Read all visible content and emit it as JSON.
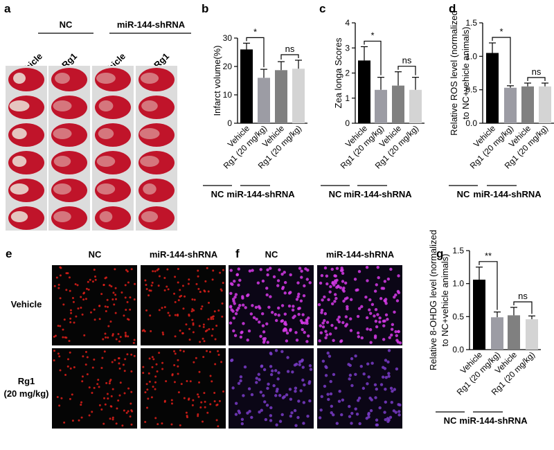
{
  "figure": {
    "panel_labels": [
      "a",
      "e",
      "f"
    ],
    "a": {
      "groups": [
        "NC",
        "miR-144-shRNA"
      ],
      "columns": [
        "Vehicle",
        "Rg1",
        "Vehicle",
        "Rg1"
      ]
    },
    "e": {
      "columns": [
        "NC",
        "miR-144-shRNA"
      ],
      "rows": [
        [
          "Vehicle"
        ],
        [
          "Rg1",
          "(20 mg/kg)"
        ]
      ]
    },
    "f": {
      "columns": [
        "NC",
        "miR-144-shRNA"
      ]
    }
  },
  "chart_data": [
    {
      "type": "bar",
      "label": "b",
      "ylabel": [
        "Infarct volume(%)"
      ],
      "categories": [
        "Vehicle",
        "Rg1 (20 mg/kg)",
        "Vehicle",
        "Rg1 (20 mg/kg)"
      ],
      "values": [
        26,
        16,
        18.7,
        19.2
      ],
      "errors": [
        2.2,
        3,
        3,
        3
      ],
      "colors": [
        "#000000",
        "#9c9ca4",
        "#808080",
        "#d4d4d4"
      ],
      "ylim": [
        0,
        30
      ],
      "yticks": [
        0,
        10,
        20,
        30
      ],
      "comparisons": [
        "*",
        "ns"
      ],
      "groups": [
        "NC",
        "miR-144-shRNA"
      ]
    },
    {
      "type": "bar",
      "label": "c",
      "ylabel": [
        "Zea longa Scores"
      ],
      "categories": [
        "Vehicle",
        "Rg1 (20 mg/kg)",
        "Vehicle",
        "Rg1 (20 mg/kg)"
      ],
      "values": [
        2.5,
        1.33,
        1.5,
        1.33
      ],
      "errors": [
        0.55,
        0.5,
        0.55,
        0.5
      ],
      "colors": [
        "#000000",
        "#9c9ca4",
        "#808080",
        "#d4d4d4"
      ],
      "ylim": [
        0,
        4
      ],
      "yticks": [
        0,
        1,
        2,
        3,
        4
      ],
      "comparisons": [
        "*",
        "ns"
      ],
      "groups": [
        "NC",
        "miR-144-shRNA"
      ]
    },
    {
      "type": "bar",
      "label": "d",
      "ylabel": [
        "Relative ROS level (normalized",
        "to NC+vehicle animals)"
      ],
      "categories": [
        "Vehicle",
        "Rg1 (20 mg/kg)",
        "Vehicle",
        "Rg1 (20 mg/kg)"
      ],
      "values": [
        1.05,
        0.53,
        0.55,
        0.55
      ],
      "errors": [
        0.15,
        0.03,
        0.05,
        0.05
      ],
      "colors": [
        "#000000",
        "#9c9ca4",
        "#808080",
        "#d4d4d4"
      ],
      "ylim": [
        0,
        1.5
      ],
      "yticks": [
        {
          "value": 0,
          "label": "0.0"
        },
        {
          "value": 0.5,
          "label": "0.5"
        },
        {
          "value": 1,
          "label": "1.0"
        },
        {
          "value": 1.5,
          "label": "1.5"
        }
      ],
      "comparisons": [
        "*",
        "ns"
      ],
      "groups": [
        "NC",
        "miR-144-shRNA"
      ]
    },
    {
      "type": "bar",
      "label": "g",
      "ylabel": [
        "Relative 8-OHDG level (normalized",
        "to NC+vehicle animals)"
      ],
      "categories": [
        "Vehicle",
        "Rg1 (20 mg/kg)",
        "Vehicle",
        "Rg1 (20 mg/kg)"
      ],
      "values": [
        1.06,
        0.49,
        0.52,
        0.46
      ],
      "errors": [
        0.19,
        0.08,
        0.12,
        0.05
      ],
      "colors": [
        "#000000",
        "#9c9ca4",
        "#808080",
        "#d4d4d4"
      ],
      "ylim": [
        0,
        1.5
      ],
      "yticks": [
        {
          "value": 0,
          "label": "0.0"
        },
        {
          "value": 0.5,
          "label": "0.5"
        },
        {
          "value": 1,
          "label": "1.0"
        },
        {
          "value": 1.5,
          "label": "1.5"
        }
      ],
      "comparisons": [
        "**",
        "ns"
      ],
      "groups": [
        "NC",
        "miR-144-shRNA"
      ]
    }
  ]
}
